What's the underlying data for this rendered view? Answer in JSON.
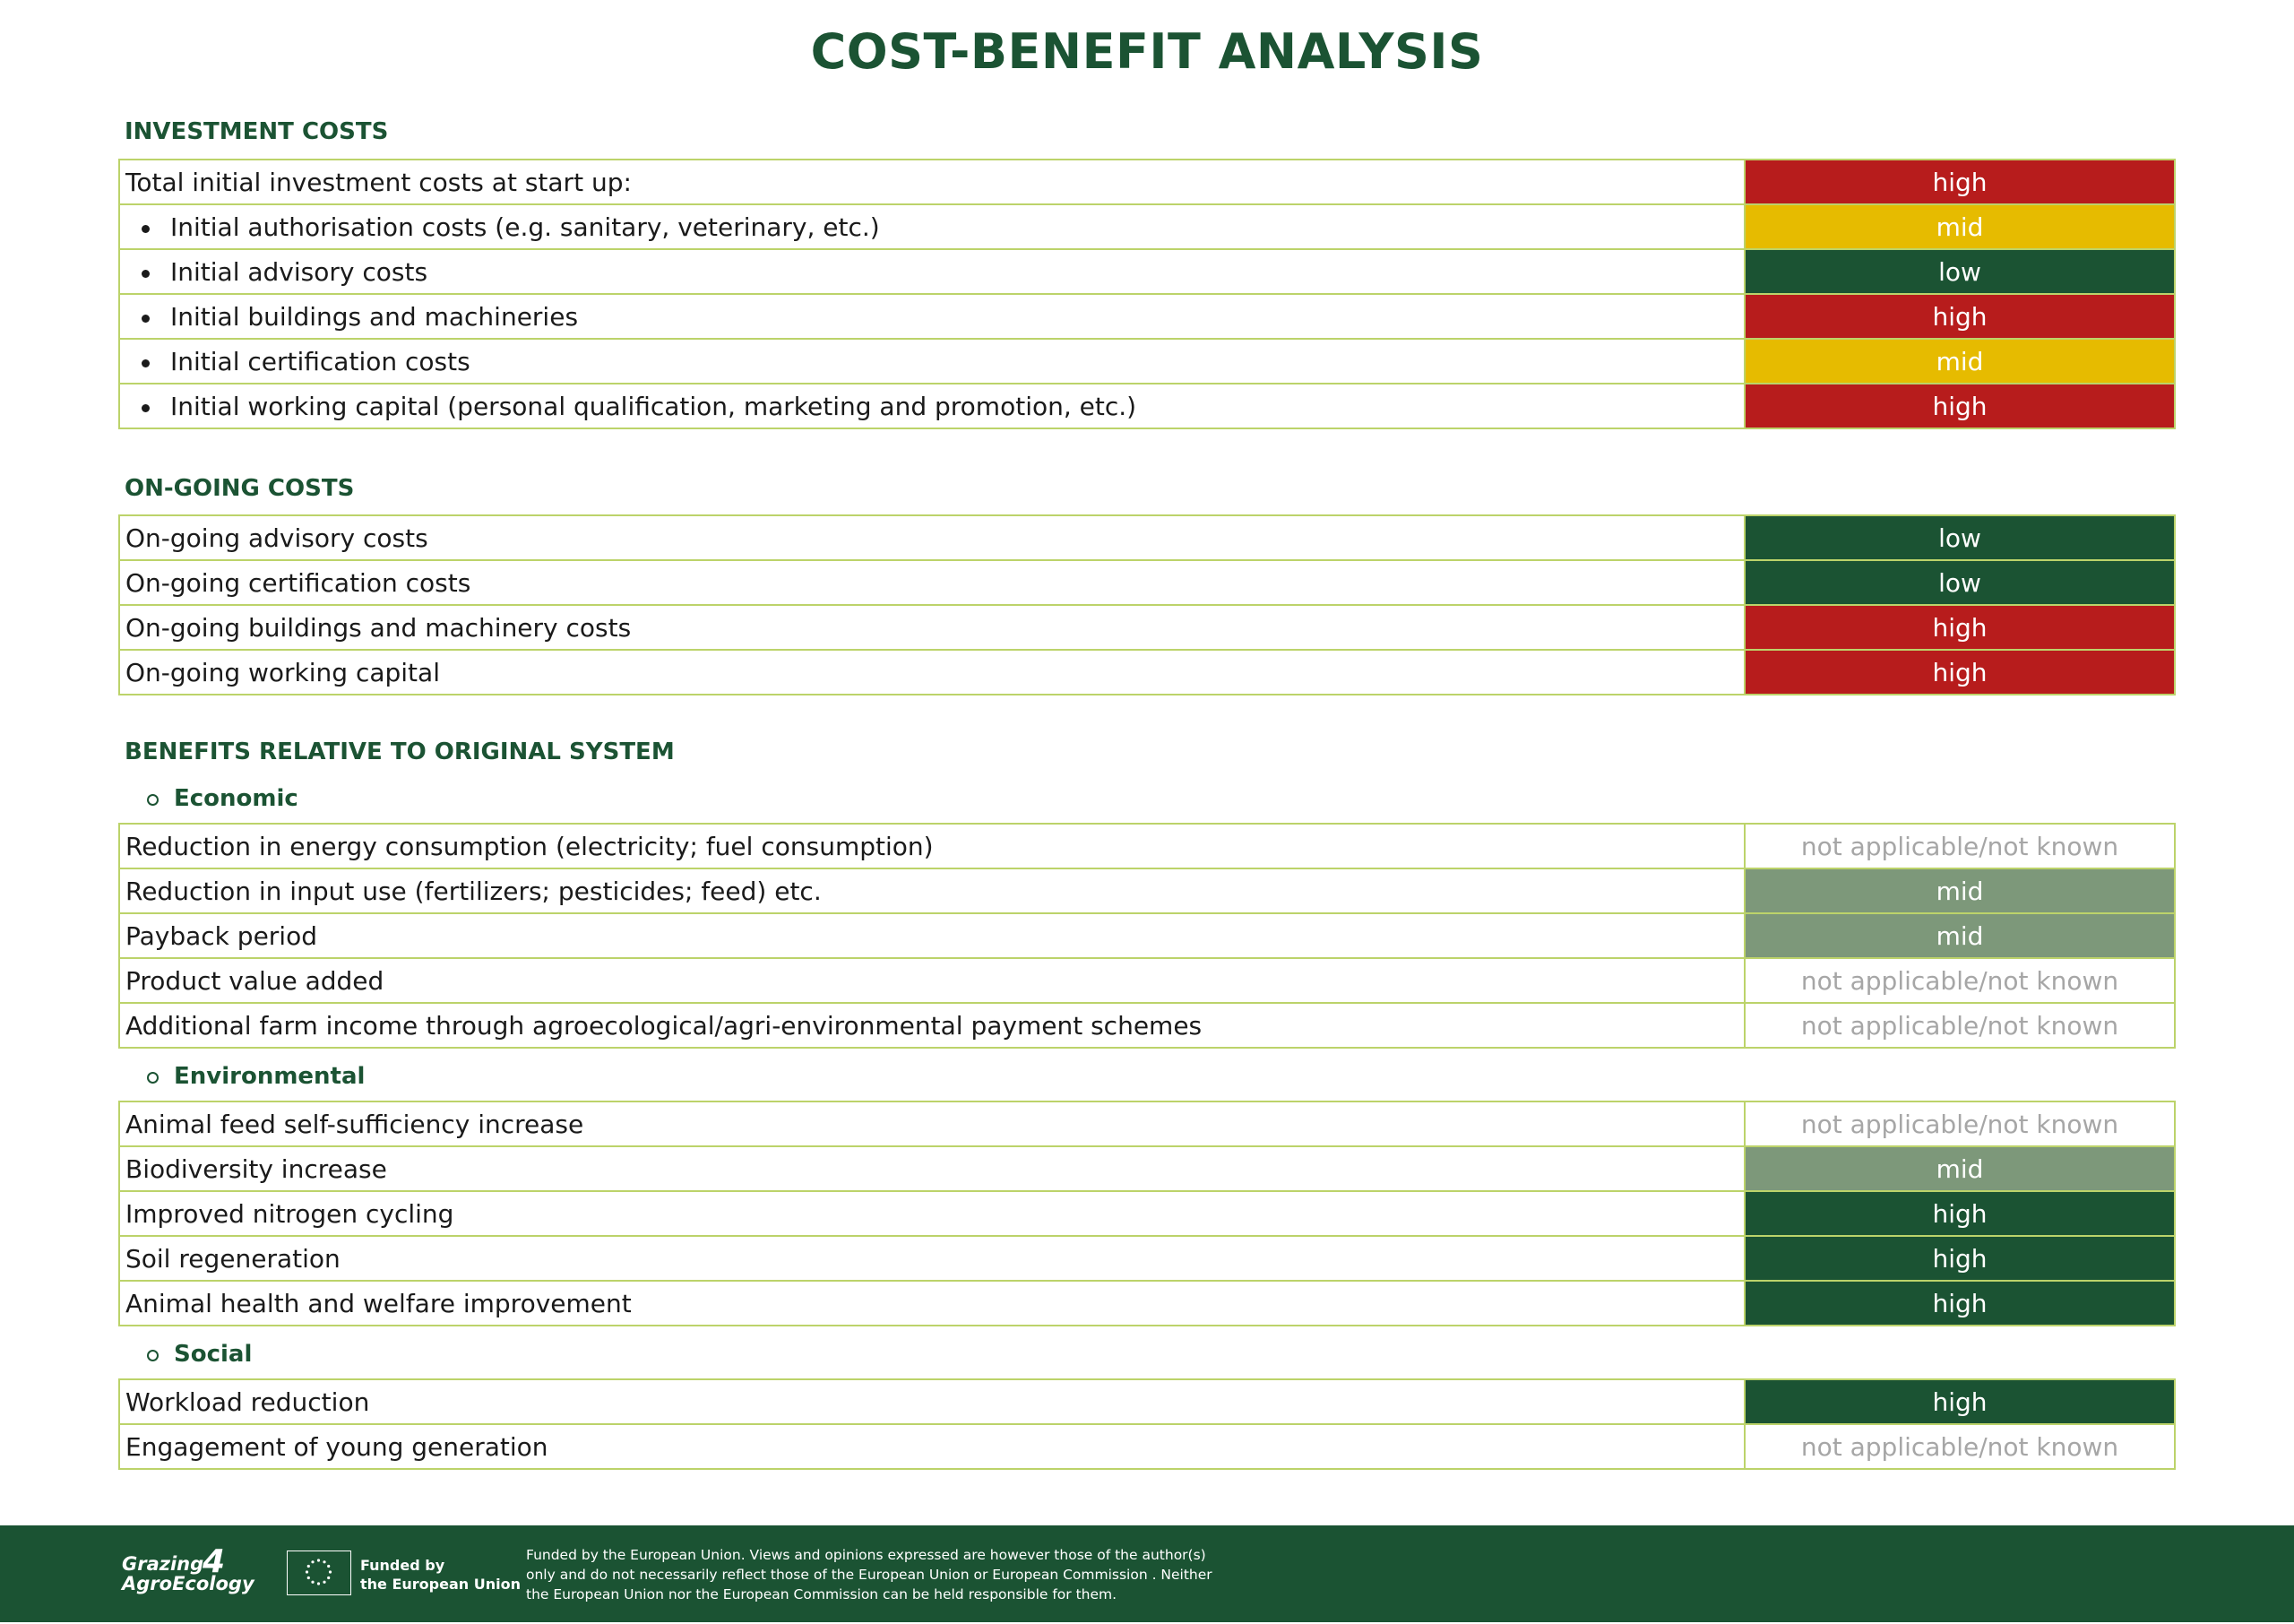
{
  "title": "COST-BENEFIT ANALYSIS",
  "investment": {
    "heading": "INVESTMENT COSTS",
    "rows": [
      {
        "label": "Total initial investment costs at start up:",
        "value": "high"
      },
      {
        "label": "Initial authorisation costs (e.g. sanitary, veterinary, etc.)",
        "value": "mid"
      },
      {
        "label": "Initial advisory costs",
        "value": "low"
      },
      {
        "label": "Initial buildings and machineries",
        "value": "high"
      },
      {
        "label": "Initial certification costs",
        "value": "mid"
      },
      {
        "label": "Initial working capital (personal qualification, marketing and promotion, etc.)",
        "value": "high"
      }
    ]
  },
  "ongoing": {
    "heading": "ON-GOING COSTS",
    "rows": [
      {
        "label": "On-going advisory costs",
        "value": "low"
      },
      {
        "label": "On-going certification costs",
        "value": "low"
      },
      {
        "label": "On-going buildings and machinery costs",
        "value": "high"
      },
      {
        "label": "On-going working capital",
        "value": "high"
      }
    ]
  },
  "benefits": {
    "heading": "BENEFITS RELATIVE TO ORIGINAL SYSTEM",
    "economic": {
      "heading": "Economic",
      "rows": [
        {
          "label": "Reduction in energy consumption (electricity; fuel consumption)",
          "value": "not applicable/not known"
        },
        {
          "label": "Reduction in input use (fertilizers; pesticides; feed) etc.",
          "value": "mid"
        },
        {
          "label": "Payback period",
          "value": "mid"
        },
        {
          "label": "Product value added",
          "value": "not applicable/not known"
        },
        {
          "label": "Additional farm income through agroecological/agri-environmental payment schemes",
          "value": "not applicable/not known"
        }
      ]
    },
    "environmental": {
      "heading": "Environmental",
      "rows": [
        {
          "label": "Animal feed self-sufficiency increase",
          "value": "not applicable/not known"
        },
        {
          "label": "Biodiversity increase",
          "value": "mid"
        },
        {
          "label": "Improved nitrogen cycling",
          "value": "high"
        },
        {
          "label": "Soil regeneration",
          "value": "high"
        },
        {
          "label": "Animal health and welfare improvement",
          "value": "high"
        }
      ]
    },
    "social": {
      "heading": "Social",
      "rows": [
        {
          "label": "Workload reduction",
          "value": "high"
        },
        {
          "label": "Engagement of young generation",
          "value": "not applicable/not known"
        }
      ]
    }
  },
  "colors": {
    "brand_green": "#1b5333",
    "high_red": "#b71c1c",
    "mid_yellow": "#e6bb00",
    "mid_sage": "#7d987a",
    "border": "#bcd36a",
    "na_text": "#a6a6a6"
  },
  "footer": {
    "logo_line1": "Grazing",
    "logo_num": "4",
    "logo_line2": "AgroEcology",
    "eu_line1": "Funded by",
    "eu_line2": "the European Union",
    "disclaimer_line1": "Funded by the European Union. Views and opinions expressed are however those of the author(s)",
    "disclaimer_line2": "only and do not necessarily reflect those of the European Union or European Commission . Neither",
    "disclaimer_line3": "the European Union nor the European Commission can be held responsible for them."
  }
}
